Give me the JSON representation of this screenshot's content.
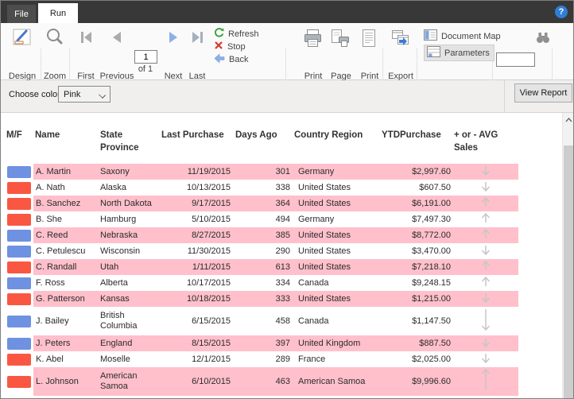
{
  "titlebar": {
    "file_tab": "File",
    "run_tab": "Run",
    "help": "?"
  },
  "ribbon": {
    "views": {
      "design": "Design",
      "group": "Views"
    },
    "zoom": {
      "zoom": "Zoom",
      "group": "Zoom"
    },
    "navigation": {
      "first": "First",
      "previous": "Previous",
      "page": "1",
      "of": "of 1",
      "next": "Next",
      "last": "Last",
      "refresh": "Refresh",
      "stop": "Stop",
      "back": "Back",
      "group": "Navigation"
    },
    "print": {
      "print": "Print",
      "page_setup_line1": "Page",
      "page_setup_line2": "Setup",
      "print_layout_line1": "Print",
      "print_layout_line2": "Layout",
      "group": "Print"
    },
    "export": {
      "export": "Export",
      "group": "Export"
    },
    "options": {
      "document_map": "Document Map",
      "parameters": "Parameters",
      "group": "Options"
    },
    "find": {
      "value": "",
      "group": "Find"
    }
  },
  "parameter_bar": {
    "choose_color_label": "Choose color",
    "color_value": "Pink",
    "view_report": "View Report"
  },
  "report": {
    "columns": [
      {
        "line1": "M/F",
        "line2": ""
      },
      {
        "line1": "Name",
        "line2": ""
      },
      {
        "line1": "State",
        "line2": "Province"
      },
      {
        "line1": "Last Purchase",
        "line2": ""
      },
      {
        "line1": "Days Ago",
        "line2": ""
      },
      {
        "line1": "Country Region",
        "line2": ""
      },
      {
        "line1": "YTDPurchase",
        "line2": ""
      },
      {
        "line1": "+ or - AVG",
        "line2": "Sales"
      }
    ],
    "rows": [
      {
        "gender": "M",
        "name": "A. Martin",
        "state": "Saxony",
        "last_purchase": "11/19/2015",
        "days_ago": "301",
        "country": "Germany",
        "ytd": "$2,997.60",
        "trend": "down",
        "shaded": true,
        "tall": false
      },
      {
        "gender": "F",
        "name": "A. Nath",
        "state": "Alaska",
        "last_purchase": "10/13/2015",
        "days_ago": "338",
        "country": "United States",
        "ytd": "$607.50",
        "trend": "down",
        "shaded": false,
        "tall": false
      },
      {
        "gender": "F",
        "name": "B. Sanchez",
        "state": "North Dakota",
        "last_purchase": "9/17/2015",
        "days_ago": "364",
        "country": "United States",
        "ytd": "$6,191.00",
        "trend": "up",
        "shaded": true,
        "tall": false
      },
      {
        "gender": "F",
        "name": "B. She",
        "state": "Hamburg",
        "last_purchase": "5/10/2015",
        "days_ago": "494",
        "country": "Germany",
        "ytd": "$7,497.30",
        "trend": "up",
        "shaded": false,
        "tall": false
      },
      {
        "gender": "M",
        "name": "C. Reed",
        "state": "Nebraska",
        "last_purchase": "8/27/2015",
        "days_ago": "385",
        "country": "United States",
        "ytd": "$8,772.00",
        "trend": "up",
        "shaded": true,
        "tall": false
      },
      {
        "gender": "M",
        "name": "C. Petulescu",
        "state": "Wisconsin",
        "last_purchase": "11/30/2015",
        "days_ago": "290",
        "country": "United States",
        "ytd": "$3,470.00",
        "trend": "down",
        "shaded": false,
        "tall": false
      },
      {
        "gender": "F",
        "name": "C. Randall",
        "state": "Utah",
        "last_purchase": "1/11/2015",
        "days_ago": "613",
        "country": "United States",
        "ytd": "$7,218.10",
        "trend": "up",
        "shaded": true,
        "tall": false
      },
      {
        "gender": "M",
        "name": "F. Ross",
        "state": "Alberta",
        "last_purchase": "10/17/2015",
        "days_ago": "334",
        "country": "Canada",
        "ytd": "$9,248.15",
        "trend": "up",
        "shaded": false,
        "tall": false
      },
      {
        "gender": "F",
        "name": "G. Patterson",
        "state": "Kansas",
        "last_purchase": "10/18/2015",
        "days_ago": "333",
        "country": "United States",
        "ytd": "$1,215.00",
        "trend": "down",
        "shaded": true,
        "tall": false
      },
      {
        "gender": "M",
        "name": "J. Bailey",
        "state": "British Columbia",
        "last_purchase": "6/15/2015",
        "days_ago": "458",
        "country": "Canada",
        "ytd": "$1,147.50",
        "trend": "down",
        "shaded": false,
        "tall": true
      },
      {
        "gender": "M",
        "name": "J. Peters",
        "state": "England",
        "last_purchase": "8/15/2015",
        "days_ago": "397",
        "country": "United Kingdom",
        "ytd": "$887.50",
        "trend": "down",
        "shaded": true,
        "tall": false
      },
      {
        "gender": "F",
        "name": "K. Abel",
        "state": "Moselle",
        "last_purchase": "12/1/2015",
        "days_ago": "289",
        "country": "France",
        "ytd": "$2,025.00",
        "trend": "down",
        "shaded": false,
        "tall": false
      },
      {
        "gender": "F",
        "name": "L. Johnson",
        "state": "American Samoa",
        "last_purchase": "6/10/2015",
        "days_ago": "463",
        "country": "American Samoa",
        "ytd": "$9,996.60",
        "trend": "up",
        "shaded": true,
        "tall": true
      }
    ],
    "colors": {
      "male_chip": "#6E91E1",
      "female_chip": "#FA5743",
      "shaded_row": "#FFC0CB",
      "trend_arrow": "#C6C6C6"
    }
  }
}
